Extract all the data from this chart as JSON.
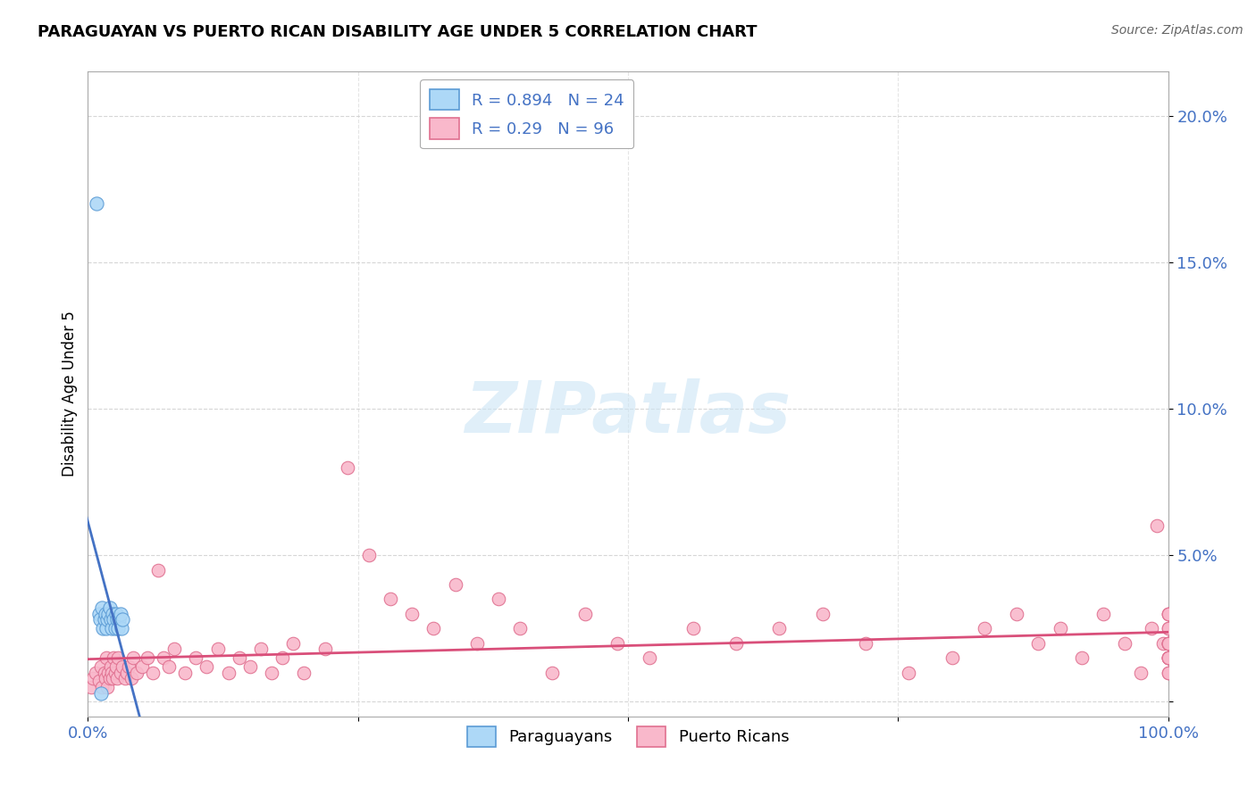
{
  "title": "PARAGUAYAN VS PUERTO RICAN DISABILITY AGE UNDER 5 CORRELATION CHART",
  "source": "Source: ZipAtlas.com",
  "ylabel": "Disability Age Under 5",
  "xmin": 0.0,
  "xmax": 1.0,
  "ymin": -0.005,
  "ymax": 0.215,
  "paraguayan_R": 0.894,
  "paraguayan_N": 24,
  "puertoRican_R": 0.29,
  "puertoRican_N": 96,
  "paraguayan_color": "#add8f7",
  "paraguayan_edge_color": "#5b9bd5",
  "puertoRican_color": "#f9b8cb",
  "puertoRican_edge_color": "#e07090",
  "trend_paraguayan_color": "#4472c4",
  "trend_puertoRican_color": "#d94f7a",
  "watermark": "ZIPatlas",
  "par_x": [
    0.008,
    0.01,
    0.011,
    0.013,
    0.014,
    0.015,
    0.016,
    0.017,
    0.018,
    0.019,
    0.02,
    0.021,
    0.022,
    0.023,
    0.024,
    0.025,
    0.026,
    0.027,
    0.028,
    0.029,
    0.03,
    0.031,
    0.032,
    0.012
  ],
  "par_y": [
    0.17,
    0.03,
    0.028,
    0.032,
    0.025,
    0.028,
    0.03,
    0.025,
    0.028,
    0.03,
    0.032,
    0.028,
    0.025,
    0.03,
    0.028,
    0.025,
    0.03,
    0.028,
    0.025,
    0.028,
    0.03,
    0.025,
    0.028,
    0.003
  ],
  "pr_x": [
    0.003,
    0.005,
    0.007,
    0.01,
    0.012,
    0.013,
    0.015,
    0.016,
    0.017,
    0.018,
    0.019,
    0.02,
    0.021,
    0.022,
    0.023,
    0.024,
    0.025,
    0.026,
    0.027,
    0.028,
    0.03,
    0.032,
    0.034,
    0.036,
    0.038,
    0.04,
    0.042,
    0.045,
    0.05,
    0.055,
    0.06,
    0.065,
    0.07,
    0.075,
    0.08,
    0.09,
    0.1,
    0.11,
    0.12,
    0.13,
    0.14,
    0.15,
    0.16,
    0.17,
    0.18,
    0.19,
    0.2,
    0.22,
    0.24,
    0.26,
    0.28,
    0.3,
    0.32,
    0.34,
    0.36,
    0.38,
    0.4,
    0.43,
    0.46,
    0.49,
    0.52,
    0.56,
    0.6,
    0.64,
    0.68,
    0.72,
    0.76,
    0.8,
    0.83,
    0.86,
    0.88,
    0.9,
    0.92,
    0.94,
    0.96,
    0.975,
    0.985,
    0.99,
    0.995,
    1.0,
    1.0,
    1.0,
    1.0,
    1.0,
    1.0,
    1.0,
    1.0,
    1.0,
    1.0,
    1.0,
    1.0,
    1.0,
    1.0,
    1.0,
    1.0,
    1.0
  ],
  "pr_y": [
    0.005,
    0.008,
    0.01,
    0.007,
    0.012,
    0.005,
    0.01,
    0.008,
    0.015,
    0.005,
    0.01,
    0.008,
    0.012,
    0.01,
    0.008,
    0.015,
    0.01,
    0.012,
    0.008,
    0.015,
    0.01,
    0.012,
    0.008,
    0.01,
    0.012,
    0.008,
    0.015,
    0.01,
    0.012,
    0.015,
    0.01,
    0.045,
    0.015,
    0.012,
    0.018,
    0.01,
    0.015,
    0.012,
    0.018,
    0.01,
    0.015,
    0.012,
    0.018,
    0.01,
    0.015,
    0.02,
    0.01,
    0.018,
    0.08,
    0.05,
    0.035,
    0.03,
    0.025,
    0.04,
    0.02,
    0.035,
    0.025,
    0.01,
    0.03,
    0.02,
    0.015,
    0.025,
    0.02,
    0.025,
    0.03,
    0.02,
    0.01,
    0.015,
    0.025,
    0.03,
    0.02,
    0.025,
    0.015,
    0.03,
    0.02,
    0.01,
    0.025,
    0.06,
    0.02,
    0.01,
    0.02,
    0.015,
    0.025,
    0.03,
    0.015,
    0.02,
    0.01,
    0.025,
    0.015,
    0.02,
    0.03,
    0.015,
    0.02,
    0.03,
    0.015,
    0.02
  ]
}
